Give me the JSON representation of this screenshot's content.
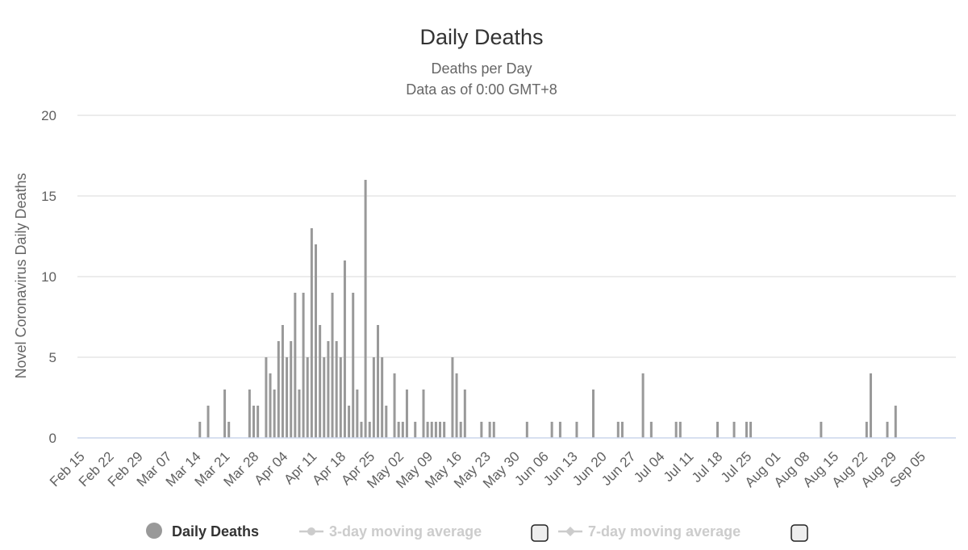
{
  "chart_data": {
    "type": "bar",
    "title": "Daily Deaths",
    "subtitle": [
      "Deaths per Day",
      "Data as of 0:00 GMT+8"
    ],
    "ylabel": "Novel Coronavirus Daily Deaths",
    "xlabel": "",
    "ylim": [
      0,
      20
    ],
    "yticks": [
      0,
      5,
      10,
      15,
      20
    ],
    "x_start": "Feb 15",
    "x_end": "Sep 05",
    "xticks": [
      "Feb 15",
      "Feb 22",
      "Feb 29",
      "Mar 07",
      "Mar 14",
      "Mar 21",
      "Mar 28",
      "Apr 04",
      "Apr 11",
      "Apr 18",
      "Apr 25",
      "May 02",
      "May 09",
      "May 16",
      "May 23",
      "May 30",
      "Jun 06",
      "Jun 13",
      "Jun 20",
      "Jun 27",
      "Jul 04",
      "Jul 11",
      "Jul 18",
      "Jul 25",
      "Aug 01",
      "Aug 08",
      "Aug 15",
      "Aug 22",
      "Aug 29",
      "Sep 05"
    ],
    "grid": true,
    "series": [
      {
        "name": "Daily Deaths",
        "color": "#999999",
        "values": [
          0,
          0,
          0,
          0,
          0,
          0,
          0,
          0,
          0,
          0,
          0,
          0,
          0,
          0,
          0,
          0,
          0,
          0,
          0,
          0,
          0,
          0,
          0,
          0,
          0,
          0,
          0,
          0,
          1,
          0,
          2,
          0,
          0,
          0,
          3,
          1,
          0,
          0,
          0,
          0,
          3,
          2,
          2,
          0,
          5,
          4,
          3,
          6,
          7,
          5,
          6,
          9,
          3,
          9,
          5,
          13,
          12,
          7,
          5,
          6,
          9,
          6,
          5,
          11,
          2,
          9,
          3,
          1,
          16,
          1,
          5,
          7,
          5,
          2,
          0,
          4,
          1,
          1,
          3,
          0,
          1,
          0,
          3,
          1,
          1,
          1,
          1,
          1,
          0,
          5,
          4,
          1,
          3,
          0,
          0,
          0,
          1,
          0,
          1,
          1,
          0,
          0,
          0,
          0,
          0,
          0,
          0,
          1,
          0,
          0,
          0,
          0,
          0,
          1,
          0,
          1,
          0,
          0,
          0,
          1,
          0,
          0,
          0,
          3,
          0,
          0,
          0,
          0,
          0,
          1,
          1,
          0,
          0,
          0,
          0,
          4,
          0,
          1,
          0,
          0,
          0,
          0,
          0,
          1,
          1,
          0,
          0,
          0,
          0,
          0,
          0,
          0,
          0,
          1,
          0,
          0,
          0,
          1,
          0,
          0,
          1,
          1,
          0,
          0,
          0,
          0,
          0,
          0,
          0,
          0,
          0,
          0,
          0,
          0,
          0,
          0,
          0,
          0,
          1,
          0,
          0,
          0,
          0,
          0,
          0,
          0,
          0,
          0,
          0,
          1,
          4,
          0,
          0,
          0,
          1,
          0,
          2,
          0,
          0,
          0,
          0,
          0,
          0,
          0,
          0,
          0,
          0,
          0,
          0,
          0,
          0,
          0
        ]
      }
    ]
  },
  "legend": {
    "items": [
      {
        "label": "Daily Deaths",
        "visible": true,
        "color": "#999999"
      },
      {
        "label": "3-day moving average",
        "visible": false,
        "color": "#cccccc"
      },
      {
        "label": "7-day moving average",
        "visible": false,
        "color": "#cccccc"
      }
    ],
    "placement": "bottom"
  }
}
